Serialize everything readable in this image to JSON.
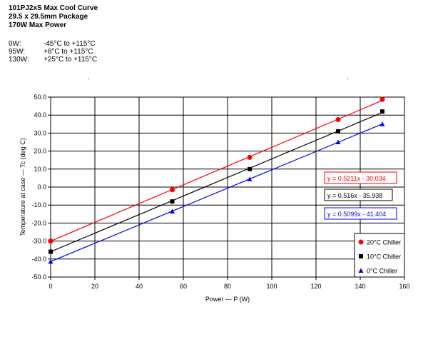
{
  "header": {
    "title": "101PJ2xS Max Cool Curve",
    "package": "29.5 x 29.5mm Package",
    "max_power": "170W Max Power"
  },
  "specs": [
    {
      "power": "0W:",
      "range": "-45°C to +115°C"
    },
    {
      "power": "95W:",
      "range": "+8°C to +115°C"
    },
    {
      "power": "130W:",
      "range": "+25°C to +115°C"
    }
  ],
  "marks": {
    "left": ".",
    "right": "."
  },
  "chart_data": {
    "type": "scatter",
    "title": "",
    "xlabel": "Power --- P (W)",
    "ylabel": "Temperature at case --- Tc (deg C)",
    "xlim": [
      0,
      160
    ],
    "ylim": [
      -50,
      50
    ],
    "xticks": [
      0,
      20,
      40,
      60,
      80,
      100,
      120,
      140,
      160
    ],
    "yticks": [
      -50,
      -40,
      -30,
      -20,
      -10,
      0,
      10,
      20,
      30,
      40,
      50
    ],
    "x_tick_labels": [
      "0",
      "20",
      "40",
      "60",
      "80",
      "100",
      "120",
      "140",
      "160"
    ],
    "y_tick_labels": [
      "-50.0",
      "-40.0",
      "-30.0",
      "-20.0",
      "-10.0",
      "0.0",
      "10.0",
      "20.0",
      "30.0",
      "40.0",
      "50.0"
    ],
    "grid": true,
    "legend_position": "bottom-right",
    "series": [
      {
        "name": "20°C Chiller",
        "color": "#ff0000",
        "marker": "circle",
        "x": [
          0,
          55,
          90,
          130,
          150
        ],
        "y": [
          -30.0,
          -1.5,
          16.5,
          37.5,
          48.7
        ],
        "trend": {
          "slope": 0.5211,
          "intercept": -30.034,
          "equation": "y = 0.5211x - 30.034"
        }
      },
      {
        "name": "10°C Chiller",
        "color": "#000000",
        "marker": "square",
        "x": [
          0,
          55,
          90,
          130,
          150
        ],
        "y": [
          -35.9,
          -8.0,
          10.0,
          31.0,
          42.0
        ],
        "trend": {
          "slope": 0.516,
          "intercept": -35.938,
          "equation": "y = 0.516x - 35.938"
        }
      },
      {
        "name": "0°C Chiller",
        "color": "#0000ff",
        "marker": "triangle",
        "x": [
          0,
          55,
          90,
          130,
          150
        ],
        "y": [
          -41.4,
          -13.5,
          4.4,
          25.0,
          35.0
        ],
        "trend": {
          "slope": 0.5099,
          "intercept": -41.404,
          "equation": "y = 0.5099x - 41.404"
        }
      }
    ]
  }
}
